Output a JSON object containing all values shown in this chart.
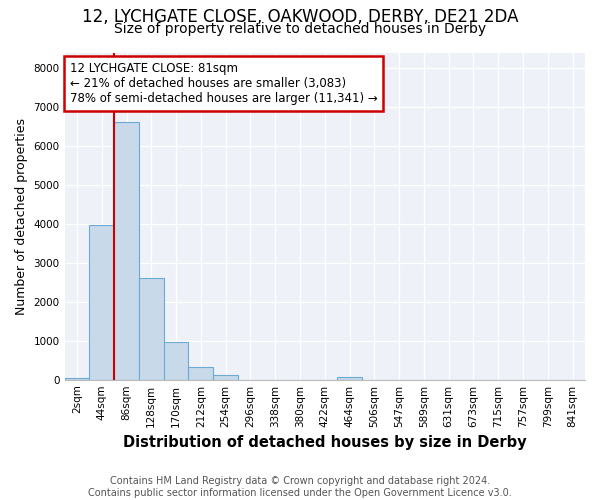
{
  "title1": "12, LYCHGATE CLOSE, OAKWOOD, DERBY, DE21 2DA",
  "title2": "Size of property relative to detached houses in Derby",
  "xlabel": "Distribution of detached houses by size in Derby",
  "ylabel": "Number of detached properties",
  "footnote": "Contains HM Land Registry data © Crown copyright and database right 2024.\nContains public sector information licensed under the Open Government Licence v3.0.",
  "bin_labels": [
    "2sqm",
    "44sqm",
    "86sqm",
    "128sqm",
    "170sqm",
    "212sqm",
    "254sqm",
    "296sqm",
    "338sqm",
    "380sqm",
    "422sqm",
    "464sqm",
    "506sqm",
    "547sqm",
    "589sqm",
    "631sqm",
    "673sqm",
    "715sqm",
    "757sqm",
    "799sqm",
    "841sqm"
  ],
  "bar_heights": [
    55,
    3980,
    6620,
    2610,
    960,
    330,
    120,
    0,
    0,
    0,
    0,
    70,
    0,
    0,
    0,
    0,
    0,
    0,
    0,
    0,
    0
  ],
  "bar_color": "#c8d9ea",
  "bar_edge_color": "#6aaad4",
  "property_line_color": "#cc0000",
  "annotation_line1": "12 LYCHGATE CLOSE: 81sqm",
  "annotation_line2": "← 21% of detached houses are smaller (3,083)",
  "annotation_line3": "78% of semi-detached houses are larger (11,341) →",
  "annotation_box_color": "#cc0000",
  "ylim": [
    0,
    8400
  ],
  "yticks": [
    0,
    1000,
    2000,
    3000,
    4000,
    5000,
    6000,
    7000,
    8000
  ],
  "background_color": "#ffffff",
  "plot_bg_color": "#eef2f8",
  "grid_color": "#ffffff",
  "title1_fontsize": 12,
  "title2_fontsize": 10,
  "xlabel_fontsize": 10.5,
  "ylabel_fontsize": 9,
  "tick_fontsize": 7.5,
  "footnote_fontsize": 7
}
